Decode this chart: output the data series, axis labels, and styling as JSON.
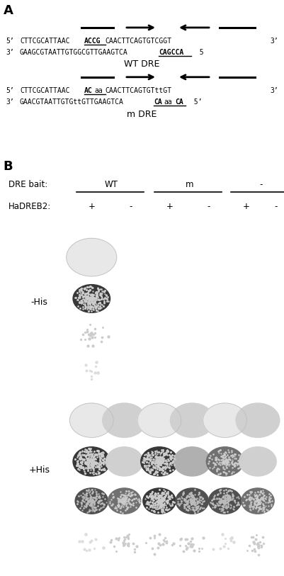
{
  "panel_A_label": "A",
  "panel_B_label": "B",
  "wt_label": "WT DRE",
  "mut_label": "m DRE",
  "bait_label": "DRE bait:",
  "bait_wt": "WT",
  "bait_m": "m",
  "bait_none": "-",
  "hadreb2_label": "HaDREB2:",
  "his_neg": "-His",
  "his_pos": "+His",
  "bg_color": "#ffffff",
  "plate_bg": "#0d0d0d",
  "fs_seq": 7.0,
  "fs_label": 9.0,
  "fs_panel": 13
}
